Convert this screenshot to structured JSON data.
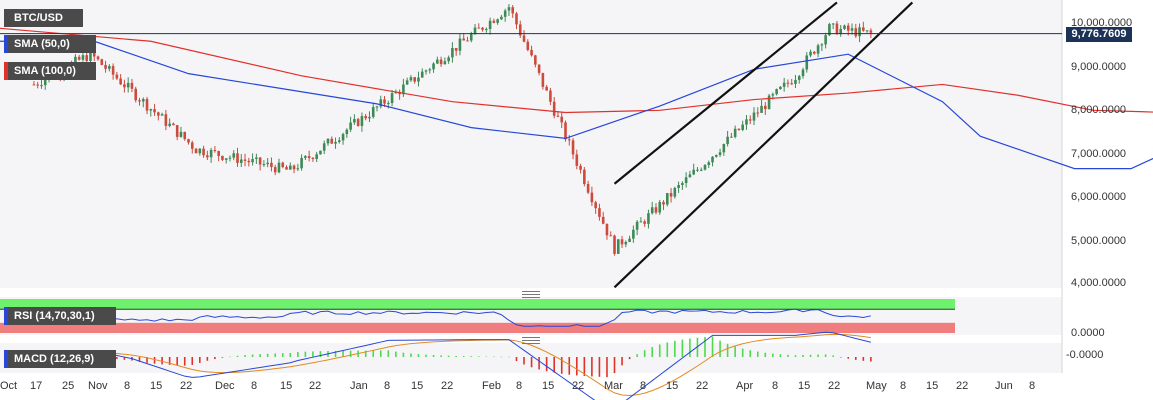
{
  "chart_data": [
    {
      "type": "candlestick",
      "title": "BTC/USD",
      "x_tick_labels": [
        "Oct",
        "17",
        "25",
        "Nov",
        "8",
        "15",
        "22",
        "Dec",
        "8",
        "15",
        "22",
        "Jan",
        "8",
        "15",
        "22",
        "Feb",
        "8",
        "15",
        "22",
        "Mar",
        "8",
        "15",
        "22",
        "Apr",
        "8",
        "15",
        "22",
        "May",
        "8",
        "15",
        "22",
        "Jun",
        "8"
      ],
      "y_tick_labels": [
        "10,000.0000",
        "9,000.0000",
        "8,000.0000",
        "7,000.0000",
        "6,000.0000",
        "5,000.0000",
        "4,000.0000"
      ],
      "ylim": [
        3900,
        10500
      ],
      "last_price": 9776.7609,
      "last_price_label": "9,776.7609",
      "indicators": [
        {
          "name": "SMA (50,0)",
          "color": "#2747d9"
        },
        {
          "name": "SMA (100,0)",
          "color": "#e0312b"
        }
      ],
      "key_points": [
        {
          "date": "2019-10-10",
          "close": 8600
        },
        {
          "date": "2019-10-25",
          "close": 9300
        },
        {
          "date": "2019-11-22",
          "close": 7100
        },
        {
          "date": "2019-12-17",
          "close": 6600
        },
        {
          "date": "2020-01-08",
          "close": 8000
        },
        {
          "date": "2020-02-13",
          "close": 10400
        },
        {
          "date": "2020-03-12",
          "close": 4800
        },
        {
          "date": "2020-04-29",
          "close": 8800
        },
        {
          "date": "2020-05-08",
          "close": 9900
        },
        {
          "date": "2020-05-19",
          "close": 9776
        }
      ],
      "sma50_points": [
        [
          0,
          9600
        ],
        [
          25,
          9600
        ],
        [
          50,
          8850
        ],
        [
          75,
          8500
        ],
        [
          100,
          8150
        ],
        [
          125,
          7600
        ],
        [
          150,
          7350
        ],
        [
          175,
          8100
        ],
        [
          200,
          8950
        ],
        [
          225,
          9300
        ],
        [
          250,
          8200
        ],
        [
          260,
          7400
        ],
        [
          275,
          6950
        ],
        [
          285,
          6650
        ],
        [
          300,
          6650
        ],
        [
          315,
          7250
        ],
        [
          325,
          7600
        ],
        [
          330,
          7800
        ],
        [
          334,
          8020
        ]
      ],
      "sma100_points": [
        [
          0,
          9900
        ],
        [
          40,
          9600
        ],
        [
          80,
          8800
        ],
        [
          120,
          8200
        ],
        [
          150,
          7950
        ],
        [
          175,
          8000
        ],
        [
          200,
          8250
        ],
        [
          225,
          8400
        ],
        [
          250,
          8600
        ],
        [
          270,
          8350
        ],
        [
          290,
          8000
        ],
        [
          310,
          7950
        ],
        [
          334,
          7950
        ]
      ],
      "channel_lines": [
        {
          "from": [
            "2020-03-12",
            6300
          ],
          "to": [
            "2020-05-10",
            10500
          ]
        },
        {
          "from": [
            "2020-03-12",
            3900
          ],
          "to": [
            "2020-05-30",
            10500
          ]
        }
      ],
      "legend": "top-left",
      "grid": false
    },
    {
      "type": "line",
      "title": "RSI (14,70,30,1)",
      "y_tick_labels": [
        "0.0000"
      ],
      "ylim": [
        0,
        100
      ],
      "bands": {
        "overbought": 70,
        "oversold": 30
      },
      "colors": {
        "line": "#2747d9",
        "overbought_fill": "#6ef26e",
        "oversold_fill": "#f07e7e"
      }
    },
    {
      "type": "bar",
      "title": "MACD (12,26,9)",
      "y_tick_labels": [
        "-0.0000"
      ],
      "colors": {
        "macd": "#2747d9",
        "signal": "#e38a1e",
        "hist_pos": "#4fd84f",
        "hist_neg": "#e0312b"
      }
    }
  ],
  "labels": {
    "pair": "BTC/USD",
    "sma50": "SMA (50,0)",
    "sma100": "SMA (100,0)",
    "rsi": "RSI (14,70,30,1)",
    "macd": "MACD (12,26,9)"
  },
  "colors": {
    "up": "#3d8a57",
    "down": "#cc4b3c",
    "sma50": "#2747d9",
    "sma100": "#e0312b",
    "channel": "#111111",
    "price_line": "#1c3357"
  }
}
